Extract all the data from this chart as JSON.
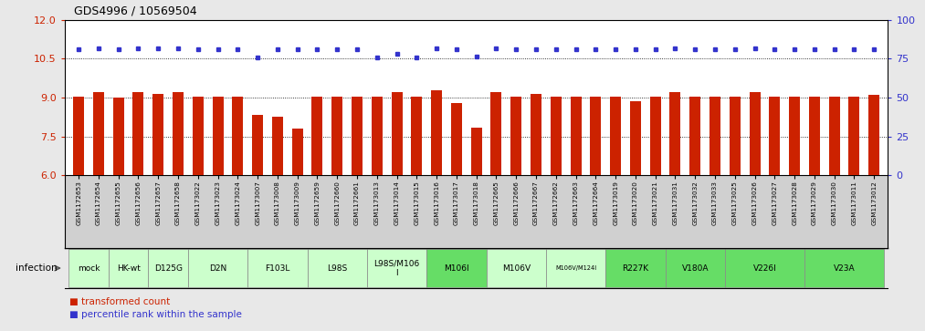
{
  "title": "GDS4996 / 10569504",
  "bar_color": "#cc2200",
  "dot_color": "#3333cc",
  "ylim_left": [
    6,
    12
  ],
  "ylim_right": [
    0,
    100
  ],
  "yticks_left": [
    6,
    7.5,
    9,
    10.5,
    12
  ],
  "yticks_right": [
    0,
    25,
    50,
    75,
    100
  ],
  "grid_values": [
    7.5,
    9,
    10.5
  ],
  "samples": [
    "GSM1172653",
    "GSM1172654",
    "GSM1172655",
    "GSM1172656",
    "GSM1172657",
    "GSM1172658",
    "GSM1173022",
    "GSM1173023",
    "GSM1173024",
    "GSM1173007",
    "GSM1173008",
    "GSM1173009",
    "GSM1172659",
    "GSM1172660",
    "GSM1172661",
    "GSM1173013",
    "GSM1173014",
    "GSM1173015",
    "GSM1173016",
    "GSM1173017",
    "GSM1173018",
    "GSM1172665",
    "GSM1172666",
    "GSM1172667",
    "GSM1172662",
    "GSM1172663",
    "GSM1172664",
    "GSM1173019",
    "GSM1173020",
    "GSM1173021",
    "GSM1173031",
    "GSM1173032",
    "GSM1173033",
    "GSM1173025",
    "GSM1173026",
    "GSM1173027",
    "GSM1173028",
    "GSM1173029",
    "GSM1173030",
    "GSM1173011",
    "GSM1173012"
  ],
  "bar_values": [
    9.05,
    9.2,
    9.0,
    9.2,
    9.15,
    9.2,
    9.05,
    9.05,
    9.05,
    8.35,
    8.25,
    7.8,
    9.05,
    9.05,
    9.05,
    9.05,
    9.2,
    9.05,
    9.3,
    8.8,
    7.85,
    9.2,
    9.05,
    9.15,
    9.05,
    9.05,
    9.05,
    9.05,
    8.85,
    9.05,
    9.2,
    9.05,
    9.05,
    9.05,
    9.2,
    9.05,
    9.05,
    9.05,
    9.05,
    9.05,
    9.1
  ],
  "dot_y_values": [
    10.85,
    10.9,
    10.85,
    10.9,
    10.9,
    10.9,
    10.85,
    10.85,
    10.85,
    10.55,
    10.85,
    10.85,
    10.85,
    10.85,
    10.85,
    10.55,
    10.7,
    10.55,
    10.9,
    10.85,
    10.6,
    10.9,
    10.85,
    10.85,
    10.85,
    10.85,
    10.85,
    10.85,
    10.85,
    10.85,
    10.9,
    10.85,
    10.85,
    10.85,
    10.9,
    10.85,
    10.85,
    10.85,
    10.85,
    10.85,
    10.85
  ],
  "infection_groups": [
    {
      "label": "mock",
      "start": 0,
      "end": 2,
      "color": "#ccffcc"
    },
    {
      "label": "HK-wt",
      "start": 2,
      "end": 4,
      "color": "#ccffcc"
    },
    {
      "label": "D125G",
      "start": 4,
      "end": 6,
      "color": "#ccffcc"
    },
    {
      "label": "D2N",
      "start": 6,
      "end": 9,
      "color": "#ccffcc"
    },
    {
      "label": "F103L",
      "start": 9,
      "end": 12,
      "color": "#ccffcc"
    },
    {
      "label": "L98S",
      "start": 12,
      "end": 15,
      "color": "#ccffcc"
    },
    {
      "label": "L98S/M106\nI",
      "start": 15,
      "end": 18,
      "color": "#ccffcc"
    },
    {
      "label": "M106I",
      "start": 18,
      "end": 21,
      "color": "#66dd66"
    },
    {
      "label": "M106V",
      "start": 21,
      "end": 24,
      "color": "#ccffcc"
    },
    {
      "label": "M106V/M124I",
      "start": 24,
      "end": 27,
      "color": "#ccffcc"
    },
    {
      "label": "R227K",
      "start": 27,
      "end": 30,
      "color": "#66dd66"
    },
    {
      "label": "V180A",
      "start": 30,
      "end": 33,
      "color": "#66dd66"
    },
    {
      "label": "V226I",
      "start": 33,
      "end": 37,
      "color": "#66dd66"
    },
    {
      "label": "V23A",
      "start": 37,
      "end": 41,
      "color": "#66dd66"
    }
  ],
  "background_color": "#e8e8e8",
  "plot_bg_color": "#ffffff",
  "tick_bg_color": "#d0d0d0",
  "legend_square_red": "#cc2200",
  "legend_square_blue": "#3333cc"
}
